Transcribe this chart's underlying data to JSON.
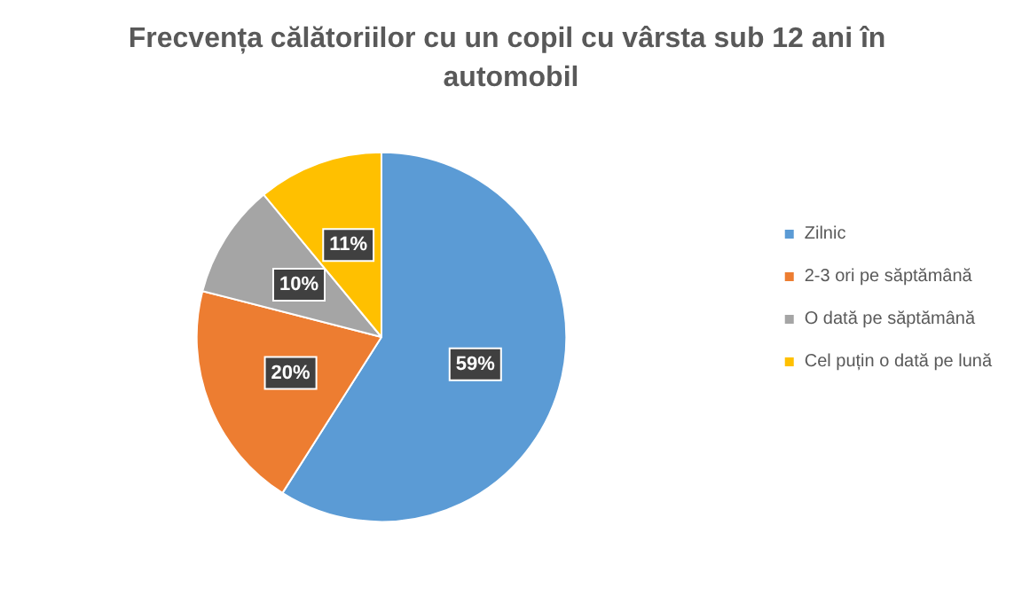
{
  "chart_data": {
    "type": "pie",
    "title": "Frecvența călătoriilor cu un copil cu vârsta sub 12 ani în automobil",
    "categories": [
      "Zilnic",
      "2-3 ori pe săptămână",
      "O dată pe săptămână",
      "Cel puțin o dată pe lună"
    ],
    "values": [
      59,
      20,
      10,
      11
    ],
    "colors": [
      "#5b9bd5",
      "#ed7d31",
      "#a5a5a5",
      "#ffc000"
    ],
    "value_labels": [
      "59%",
      "20%",
      "10%",
      "11%"
    ],
    "legend": "right"
  }
}
